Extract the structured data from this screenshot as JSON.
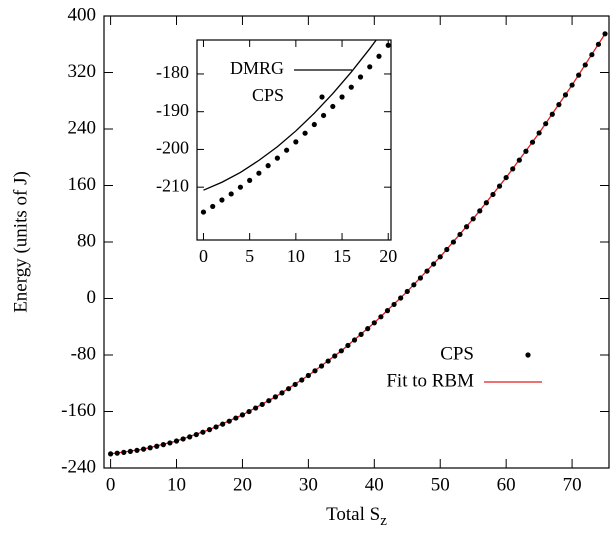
{
  "chart_data": [
    {
      "type": "scatter",
      "ylabel": "Energy (units of J)",
      "xlabel": "Total S",
      "xlabel_subscript": "z",
      "xlim": [
        -1,
        75.6
      ],
      "xticks": [
        0,
        10,
        20,
        30,
        40,
        50,
        60,
        70
      ],
      "ylim": [
        -240,
        400
      ],
      "yticks": [
        -240,
        -160,
        -80,
        0,
        80,
        160,
        240,
        320,
        400
      ],
      "legend": "lower right",
      "series": [
        {
          "name": "CPS",
          "color": "#000000",
          "line": false,
          "x": [
            0,
            1,
            2,
            3,
            4,
            5,
            6,
            7,
            8,
            9,
            10,
            11,
            12,
            13,
            14,
            15,
            16,
            17,
            18,
            19,
            20,
            21,
            22,
            23,
            24,
            25,
            26,
            27,
            28,
            29,
            30,
            31,
            32,
            33,
            34,
            35,
            36,
            37,
            38,
            39,
            40,
            41,
            42,
            43,
            44,
            45,
            46,
            47,
            48,
            49,
            50,
            51,
            52,
            53,
            54,
            55,
            56,
            57,
            58,
            59,
            60,
            61,
            62,
            63,
            64,
            65,
            66,
            67,
            68,
            69,
            70,
            71,
            72,
            73,
            74,
            75
          ],
          "values": [
            -220,
            -219.0,
            -217.9,
            -216.5,
            -215.0,
            -213.3,
            -211.3,
            -209.2,
            -206.9,
            -204.5,
            -201.8,
            -198.9,
            -195.9,
            -192.7,
            -189.3,
            -185.7,
            -181.9,
            -177.9,
            -173.7,
            -169.3,
            -164.8,
            -160.1,
            -155.1,
            -150.0,
            -144.7,
            -139.3,
            -133.6,
            -127.7,
            -121.7,
            -115.4,
            -109.0,
            -102.4,
            -95.6,
            -88.6,
            -81.4,
            -74.1,
            -66.5,
            -58.8,
            -50.8,
            -42.7,
            -34.4,
            -25.9,
            -17.2,
            -8.4,
            0.7,
            10.0,
            19.4,
            29.0,
            38.8,
            48.8,
            59.0,
            69.4,
            79.9,
            90.7,
            101.6,
            112.8,
            124.1,
            135.6,
            147.3,
            159.1,
            171.2,
            183.5,
            195.9,
            208.5,
            221.3,
            234.4,
            247.5,
            260.9,
            274.5,
            288.3,
            302.2,
            316.3,
            330.7,
            345.2,
            359.9,
            374.8
          ]
        },
        {
          "name": "Fit to RBM",
          "color": "#e41a1c",
          "line": true,
          "x": [
            0,
            5,
            10,
            15,
            20,
            25,
            30,
            35,
            40,
            45,
            50,
            55,
            60,
            65,
            70,
            75
          ],
          "values": [
            -220,
            -213.3,
            -201.8,
            -185.7,
            -164.8,
            -139.3,
            -109,
            -74.1,
            -34.4,
            10,
            59,
            112.8,
            171.2,
            234.4,
            302.2,
            374.8
          ]
        }
      ]
    },
    {
      "type": "scatter",
      "xlim": [
        -0.7,
        20.3
      ],
      "xticks": [
        0,
        5,
        10,
        15,
        20
      ],
      "ylim": [
        -224,
        -171
      ],
      "yticks": [
        -210,
        -200,
        -190,
        -180
      ],
      "legend": "upper left",
      "series": [
        {
          "name": "DMRG",
          "color": "#000000",
          "line": true,
          "x": [
            0,
            2,
            4,
            6,
            8,
            10,
            12,
            14,
            16,
            18,
            19
          ],
          "values": [
            -210.8,
            -208.7,
            -206.1,
            -202.9,
            -199.3,
            -195.1,
            -190.4,
            -185.2,
            -179.5,
            -173.3,
            -170.0
          ]
        },
        {
          "name": "CPS",
          "color": "#000000",
          "line": false,
          "x": [
            0,
            1,
            2,
            3,
            4,
            5,
            6,
            7,
            8,
            9,
            10,
            11,
            12,
            13,
            14,
            15,
            16,
            17,
            18,
            19,
            20
          ],
          "values": [
            -216.6,
            -215.1,
            -213.4,
            -211.8,
            -210.0,
            -208.2,
            -206.3,
            -204.3,
            -202.3,
            -200.2,
            -198.0,
            -195.7,
            -193.4,
            -191.0,
            -188.6,
            -186.1,
            -183.5,
            -180.8,
            -178.1,
            -175.3,
            -172.4
          ]
        }
      ]
    }
  ]
}
